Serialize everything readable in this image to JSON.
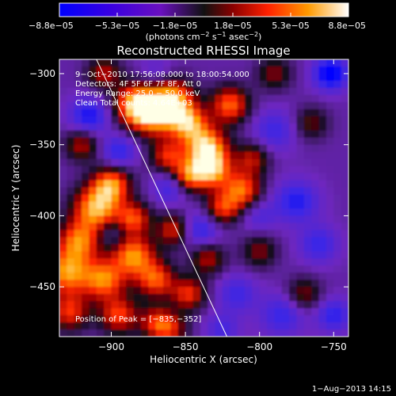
{
  "chart_data": {
    "type": "heatmap",
    "title": "Reconstructed RHESSI Image",
    "xlabel": "Heliocentric X (arcsec)",
    "ylabel": "Heliocentric Y (arcsec)",
    "xlim": [
      -935,
      -740
    ],
    "ylim": [
      -485,
      -290
    ],
    "x_ticks": [
      {
        "value": -900,
        "label": "−900"
      },
      {
        "value": -850,
        "label": "−850"
      },
      {
        "value": -800,
        "label": "−800"
      },
      {
        "value": -750,
        "label": "−750"
      }
    ],
    "y_ticks": [
      {
        "value": -300,
        "label": "−300"
      },
      {
        "value": -350,
        "label": "−350"
      },
      {
        "value": -400,
        "label": "−400"
      },
      {
        "value": -450,
        "label": "−450"
      }
    ],
    "colorbar": {
      "min": -8.8e-05,
      "max": 8.8e-05,
      "tick_labels": [
        "−8.8e−05",
        "−5.3e−05",
        "−1.8e−05",
        "1.8e−05",
        "5.3e−05",
        "8.8e−05"
      ],
      "units_main": "(photons cm",
      "units_sup1": "−2",
      "units_mid": " s",
      "units_sup2": "−1",
      "units_mid2": " asec",
      "units_sup3": "−2",
      "units_end": ")"
    },
    "annotations": [
      "9−Oct−2010 17:56:08.000 to 18:00:54.000",
      "Detectors: 4F 5F 6F 7F 8F, Att 0",
      "Energy Range: 25.0 − 50.0 keV",
      "Clean     Total counts: 4.64E+03"
    ],
    "peak_label": "Position of Peak = [−835,−352]",
    "peak": [
      -835,
      -352
    ],
    "limb_line": [
      [
        -910,
        -290
      ],
      [
        -822,
        -485
      ]
    ],
    "blobs": [
      {
        "x": -883,
        "y": -322,
        "v": 0.95,
        "s": 10
      },
      {
        "x": -870,
        "y": -328,
        "v": 0.9,
        "s": 11
      },
      {
        "x": -858,
        "y": -318,
        "v": 0.75,
        "s": 10
      },
      {
        "x": -848,
        "y": -335,
        "v": 0.8,
        "s": 9
      },
      {
        "x": -836,
        "y": -352,
        "v": 1.0,
        "s": 10
      },
      {
        "x": -832,
        "y": -368,
        "v": 0.85,
        "s": 9
      },
      {
        "x": -848,
        "y": -372,
        "v": 0.7,
        "s": 8
      },
      {
        "x": -862,
        "y": -358,
        "v": 0.55,
        "s": 8
      },
      {
        "x": -820,
        "y": -322,
        "v": 0.75,
        "s": 9
      },
      {
        "x": -812,
        "y": -382,
        "v": 0.75,
        "s": 9
      },
      {
        "x": -825,
        "y": -395,
        "v": 0.6,
        "s": 8
      },
      {
        "x": -805,
        "y": -360,
        "v": 0.45,
        "s": 8
      },
      {
        "x": -900,
        "y": -378,
        "v": 0.8,
        "s": 9
      },
      {
        "x": -910,
        "y": -395,
        "v": 0.95,
        "s": 11
      },
      {
        "x": -922,
        "y": -418,
        "v": 0.75,
        "s": 10
      },
      {
        "x": -885,
        "y": -402,
        "v": 0.65,
        "s": 8
      },
      {
        "x": -885,
        "y": -428,
        "v": 0.85,
        "s": 10
      },
      {
        "x": -930,
        "y": -440,
        "v": 0.85,
        "s": 11
      },
      {
        "x": -905,
        "y": -445,
        "v": 0.8,
        "s": 10
      },
      {
        "x": -870,
        "y": -445,
        "v": 0.7,
        "s": 9
      },
      {
        "x": -858,
        "y": -410,
        "v": 0.55,
        "s": 8
      },
      {
        "x": -848,
        "y": -455,
        "v": 0.6,
        "s": 8
      },
      {
        "x": -928,
        "y": -468,
        "v": 0.6,
        "s": 9
      },
      {
        "x": -895,
        "y": -470,
        "v": 0.65,
        "s": 9
      },
      {
        "x": -870,
        "y": -475,
        "v": 0.5,
        "s": 8
      },
      {
        "x": -835,
        "y": -430,
        "v": 0.45,
        "s": 8
      },
      {
        "x": -920,
        "y": -350,
        "v": 0.45,
        "s": 8
      },
      {
        "x": -800,
        "y": -425,
        "v": 0.35,
        "s": 8
      },
      {
        "x": -770,
        "y": -455,
        "v": 0.35,
        "s": 8
      },
      {
        "x": -765,
        "y": -335,
        "v": 0.3,
        "s": 8
      },
      {
        "x": -790,
        "y": -300,
        "v": 0.35,
        "s": 8
      },
      {
        "x": -905,
        "y": -300,
        "v": 0.45,
        "s": 8
      },
      {
        "x": -860,
        "y": -480,
        "v": 0.45,
        "s": 8
      },
      {
        "x": -915,
        "y": -330,
        "v": -0.7,
        "s": 9
      },
      {
        "x": -895,
        "y": -355,
        "v": -0.6,
        "s": 8
      },
      {
        "x": -860,
        "y": -380,
        "v": -0.55,
        "s": 8
      },
      {
        "x": -840,
        "y": -410,
        "v": -0.6,
        "s": 9
      },
      {
        "x": -790,
        "y": -340,
        "v": -0.5,
        "s": 10
      },
      {
        "x": -775,
        "y": -390,
        "v": -0.65,
        "s": 10
      },
      {
        "x": -752,
        "y": -300,
        "v": -0.9,
        "s": 8
      },
      {
        "x": -760,
        "y": -420,
        "v": -0.55,
        "s": 9
      },
      {
        "x": -785,
        "y": -470,
        "v": -0.55,
        "s": 10
      },
      {
        "x": -815,
        "y": -455,
        "v": -0.5,
        "s": 9
      },
      {
        "x": -825,
        "y": -480,
        "v": -0.45,
        "s": 8
      },
      {
        "x": -750,
        "y": -470,
        "v": -0.6,
        "s": 8
      },
      {
        "x": -800,
        "y": -400,
        "v": -0.4,
        "s": 8
      },
      {
        "x": -870,
        "y": -300,
        "v": -0.35,
        "s": 8
      },
      {
        "x": -900,
        "y": -412,
        "v": -0.4,
        "s": 7
      }
    ]
  },
  "footer": {
    "timestamp": "1−Aug−2013 14:15"
  }
}
